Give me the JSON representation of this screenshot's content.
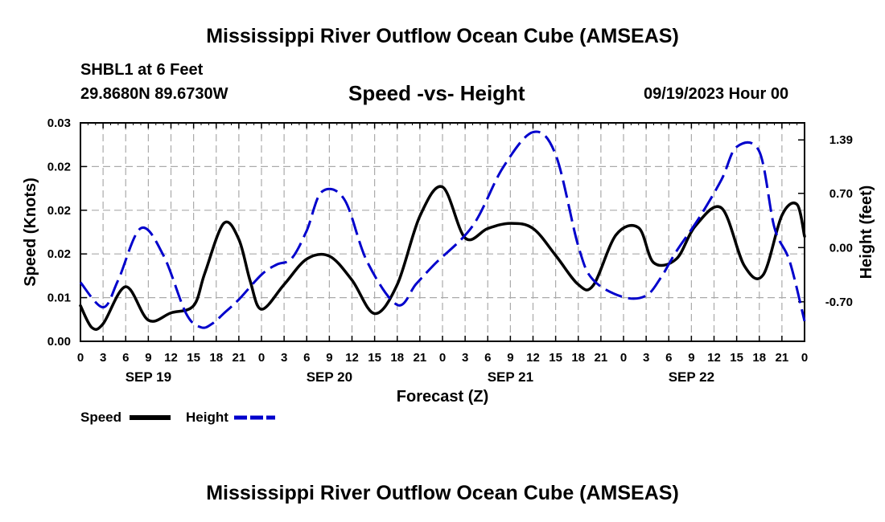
{
  "titles": {
    "main": "Mississippi River Outflow Ocean Cube (AMSEAS)",
    "bottom": "Mississippi River Outflow Ocean Cube (AMSEAS)"
  },
  "header": {
    "station": "SHBL1 at 6 Feet",
    "coordinates": "29.8680N  89.6730W",
    "subtitle": "Speed -vs- Height",
    "timestamp": "09/19/2023 Hour 00"
  },
  "colors": {
    "speed": "#000000",
    "height": "#0000cc",
    "grid": "#aaaaaa"
  },
  "chart_data": {
    "type": "line",
    "title": "Speed -vs- Height",
    "xlabel": "Forecast (Z)",
    "x_unit": "hours since 09/19/2023 00Z",
    "xlim": [
      0,
      96
    ],
    "x_tick_labels": [
      "0",
      "3",
      "6",
      "9",
      "12",
      "15",
      "18",
      "21",
      "0",
      "3",
      "6",
      "9",
      "12",
      "15",
      "18",
      "21",
      "0",
      "3",
      "6",
      "9",
      "12",
      "15",
      "18",
      "21",
      "0",
      "3",
      "6",
      "9",
      "12",
      "15",
      "18",
      "21",
      "0"
    ],
    "day_labels": [
      {
        "label": "SEP 19",
        "hour": 9
      },
      {
        "label": "SEP 20",
        "hour": 33
      },
      {
        "label": "SEP 21",
        "hour": 57
      },
      {
        "label": "SEP 22",
        "hour": 81
      }
    ],
    "left_axis": {
      "label": "Speed (Knots)",
      "ylim": [
        0,
        0.03
      ],
      "ticks": [
        "0.00",
        "0.01",
        "0.02",
        "0.02",
        "0.02",
        "0.03"
      ]
    },
    "right_axis": {
      "label": "Height (feet)",
      "ylim": [
        -1.21,
        1.61
      ],
      "ticks": [
        "-0.70",
        "0.00",
        "0.70",
        "1.39"
      ]
    },
    "legend": {
      "position": "bottom-left",
      "entries": [
        "Speed",
        "Height"
      ]
    },
    "series": [
      {
        "name": "Speed",
        "axis": "left",
        "style": "solid",
        "x": [
          0,
          1.5,
          3,
          6,
          9,
          12,
          15,
          16.5,
          19,
          21,
          22.5,
          24,
          27,
          30,
          33,
          36,
          39,
          42,
          45,
          48,
          51,
          54,
          57,
          60,
          63,
          66,
          68,
          71,
          74,
          76,
          79,
          81.5,
          85,
          88,
          90.5,
          93,
          95,
          96
        ],
        "y": [
          0.0049,
          0.0019,
          0.0024,
          0.0075,
          0.0029,
          0.0039,
          0.0049,
          0.0094,
          0.0162,
          0.014,
          0.0083,
          0.0044,
          0.0078,
          0.0113,
          0.0117,
          0.0084,
          0.0038,
          0.0078,
          0.0172,
          0.0212,
          0.0142,
          0.0155,
          0.0162,
          0.0155,
          0.0118,
          0.0078,
          0.0077,
          0.0146,
          0.0156,
          0.0108,
          0.0113,
          0.0158,
          0.0183,
          0.0104,
          0.0091,
          0.0173,
          0.0188,
          0.0144
        ]
      },
      {
        "name": "Height",
        "axis": "right",
        "style": "dashed",
        "x": [
          0,
          3,
          5,
          8,
          11,
          14,
          16,
          17.5,
          19,
          21,
          24,
          26,
          28,
          30,
          32,
          35,
          38,
          42,
          44.5,
          47,
          52,
          56,
          60,
          63,
          66,
          68,
          72,
          75,
          77,
          79,
          82,
          85,
          87,
          90,
          92,
          94,
          96
        ],
        "y": [
          -0.45,
          -0.77,
          -0.42,
          0.25,
          -0.1,
          -0.85,
          -1.03,
          -0.98,
          -0.85,
          -0.67,
          -0.35,
          -0.22,
          -0.14,
          0.22,
          0.72,
          0.62,
          -0.18,
          -0.74,
          -0.47,
          -0.21,
          0.28,
          1.03,
          1.49,
          1.2,
          0.02,
          -0.42,
          -0.64,
          -0.62,
          -0.38,
          -0.05,
          0.38,
          0.88,
          1.3,
          1.24,
          0.26,
          -0.17,
          -0.95
        ]
      }
    ]
  }
}
